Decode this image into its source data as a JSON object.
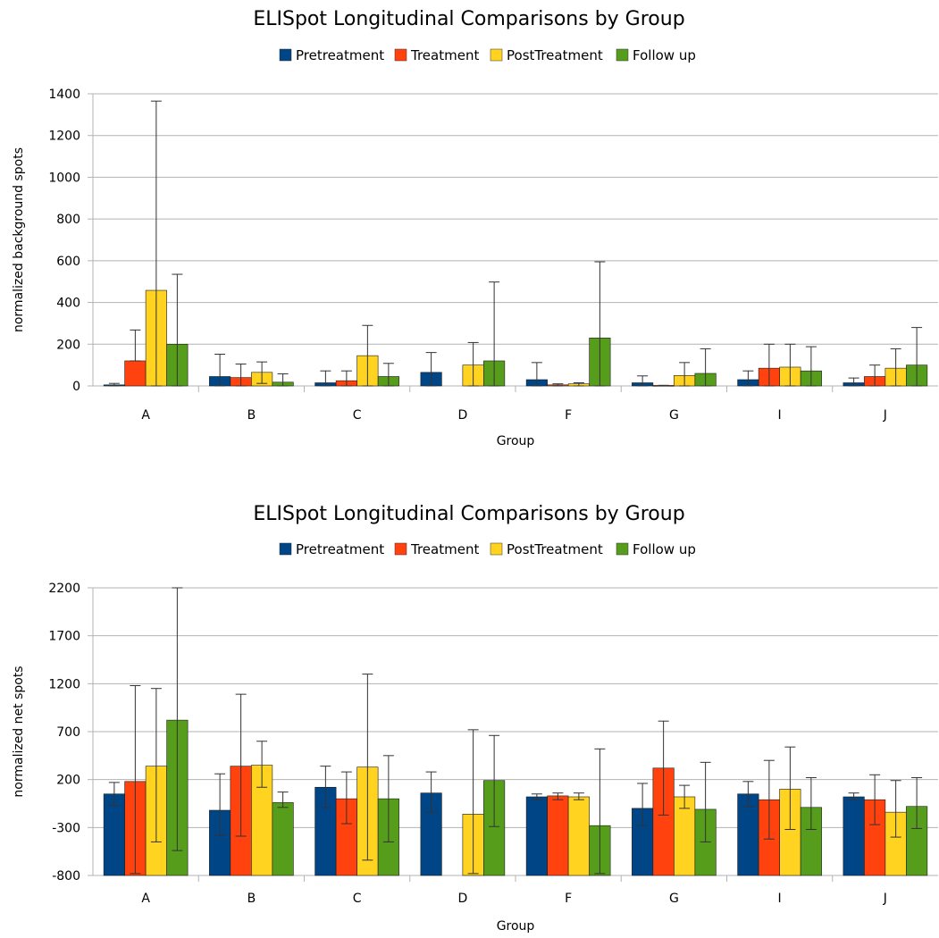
{
  "colors": {
    "Pretreatment": "#004586",
    "Treatment": "#ff420e",
    "PostTreatment": "#ffd320",
    "Follow up": "#579d1c"
  },
  "chart_data": [
    {
      "type": "bar",
      "title": "ELISpot Longitudinal Comparisons by Group",
      "xlabel": "Group",
      "ylabel": "normalized background spots",
      "ylim": [
        0,
        1400
      ],
      "yticks": [
        "0",
        "200",
        "400",
        "600",
        "800",
        "1000",
        "1200",
        "1400"
      ],
      "ytick_values": [
        0,
        200,
        400,
        600,
        800,
        1000,
        1200,
        1400
      ],
      "grid": true,
      "legend_position": "top",
      "categories": [
        "A",
        "B",
        "C",
        "D",
        "F",
        "G",
        "I",
        "J"
      ],
      "series": [
        {
          "name": "Pretreatment",
          "values": [
            5,
            45,
            15,
            65,
            30,
            15,
            30,
            15
          ],
          "err_low": [
            0,
            0,
            0,
            0,
            0,
            0,
            0,
            0
          ],
          "err_high": [
            12,
            152,
            72,
            160,
            112,
            48,
            72,
            38
          ]
        },
        {
          "name": "Treatment",
          "values": [
            120,
            40,
            25,
            null,
            5,
            3,
            85,
            45
          ],
          "err_low": [
            120,
            0,
            0,
            null,
            0,
            0,
            0,
            0
          ],
          "err_high": [
            268,
            105,
            72,
            null,
            10,
            3,
            200,
            100
          ]
        },
        {
          "name": "PostTreatment",
          "values": [
            458,
            65,
            145,
            100,
            10,
            50,
            90,
            85
          ],
          "err_low": [
            0,
            12,
            0,
            0,
            0,
            0,
            0,
            0
          ],
          "err_high": [
            1365,
            115,
            290,
            208,
            15,
            112,
            200,
            178
          ]
        },
        {
          "name": "Follow up",
          "values": [
            200,
            18,
            45,
            120,
            230,
            60,
            72,
            100
          ],
          "err_low": [
            0,
            0,
            0,
            0,
            0,
            0,
            0,
            0
          ],
          "err_high": [
            535,
            58,
            108,
            498,
            595,
            178,
            188,
            280
          ]
        }
      ]
    },
    {
      "type": "bar",
      "title": "ELISpot Longitudinal Comparisons by Group",
      "xlabel": "Group",
      "ylabel": "normalized net spots",
      "ylim": [
        -800,
        2200
      ],
      "yticks": [
        "-800",
        "-300",
        "200",
        "700",
        "1200",
        "1700",
        "2200"
      ],
      "ytick_values": [
        -800,
        -300,
        200,
        700,
        1200,
        1700,
        2200
      ],
      "grid": true,
      "legend_position": "top",
      "categories": [
        "A",
        "B",
        "C",
        "D",
        "F",
        "G",
        "I",
        "J"
      ],
      "series": [
        {
          "name": "Pretreatment",
          "values": [
            50,
            -120,
            120,
            60,
            20,
            -100,
            50,
            20
          ],
          "err_low": [
            -70,
            -380,
            -90,
            -140,
            -10,
            -280,
            -80,
            -10
          ],
          "err_high": [
            170,
            260,
            340,
            280,
            50,
            160,
            180,
            60
          ]
        },
        {
          "name": "Treatment",
          "values": [
            180,
            340,
            0,
            null,
            30,
            320,
            -10,
            -10
          ],
          "err_low": [
            -780,
            -390,
            -260,
            null,
            -10,
            -170,
            -420,
            -270
          ],
          "err_high": [
            1180,
            1090,
            280,
            null,
            60,
            810,
            400,
            250
          ]
        },
        {
          "name": "PostTreatment",
          "values": [
            340,
            350,
            330,
            -160,
            20,
            20,
            100,
            -140
          ],
          "err_low": [
            -450,
            120,
            -640,
            -780,
            -10,
            -100,
            -320,
            -400
          ],
          "err_high": [
            1150,
            600,
            1300,
            720,
            60,
            140,
            540,
            190
          ]
        },
        {
          "name": "Follow up",
          "values": [
            820,
            -40,
            0,
            190,
            -280,
            -110,
            -90,
            -80
          ],
          "err_low": [
            -540,
            -90,
            -450,
            -290,
            -780,
            -450,
            -320,
            -310
          ],
          "err_high": [
            2200,
            70,
            450,
            660,
            520,
            380,
            220,
            220
          ]
        }
      ]
    }
  ]
}
